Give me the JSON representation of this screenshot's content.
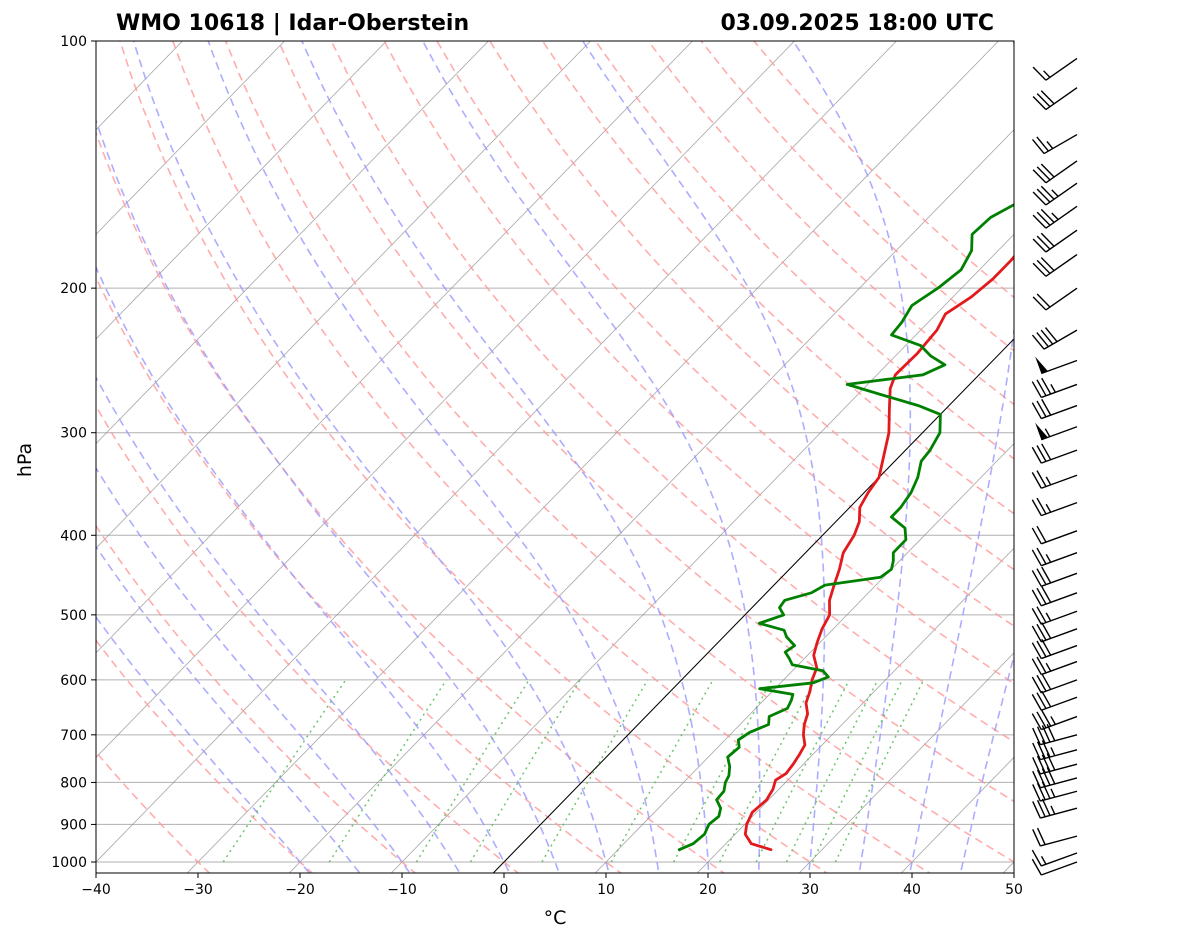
{
  "chart_data": {
    "type": "line",
    "title_left": "WMO 10618 | Idar-Oberstein",
    "title_right": "03.09.2025 18:00 UTC",
    "xlabel": "°C",
    "ylabel": "hPa",
    "xlim": [
      -40,
      50
    ],
    "ylim": [
      1050,
      100
    ],
    "y_scale": "log",
    "x_ticks": [
      -40,
      -30,
      -20,
      -10,
      0,
      10,
      20,
      30,
      40,
      50
    ],
    "x_tick_labels": [
      "−40",
      "−30",
      "−20",
      "−10",
      "0",
      "10",
      "20",
      "30",
      "40",
      "50"
    ],
    "y_ticks": [
      100,
      200,
      300,
      400,
      500,
      600,
      700,
      800,
      900,
      1000
    ],
    "y_tick_labels": [
      "100",
      "200",
      "300",
      "400",
      "500",
      "600",
      "700",
      "800",
      "900",
      "1000"
    ],
    "grid": true,
    "series": [
      {
        "key": "temperature",
        "color": "#e31a1c",
        "points": [
          [
            966,
            25.0
          ],
          [
            950,
            22.5
          ],
          [
            925,
            21.0
          ],
          [
            900,
            20.2
          ],
          [
            870,
            19.6
          ],
          [
            840,
            19.8
          ],
          [
            815,
            19.4
          ],
          [
            795,
            18.8
          ],
          [
            780,
            19.2
          ],
          [
            760,
            19.0
          ],
          [
            740,
            18.7
          ],
          [
            720,
            18.3
          ],
          [
            700,
            17.2
          ],
          [
            680,
            16.3
          ],
          [
            660,
            15.6
          ],
          [
            640,
            14.4
          ],
          [
            620,
            13.7
          ],
          [
            600,
            12.8
          ],
          [
            580,
            12.1
          ],
          [
            560,
            10.6
          ],
          [
            540,
            9.7
          ],
          [
            520,
            8.9
          ],
          [
            500,
            8.3
          ],
          [
            480,
            6.9
          ],
          [
            460,
            5.9
          ],
          [
            440,
            4.9
          ],
          [
            420,
            3.7
          ],
          [
            400,
            3.1
          ],
          [
            385,
            2.3
          ],
          [
            370,
            1.0
          ],
          [
            355,
            0.4
          ],
          [
            340,
            0.0
          ],
          [
            320,
            -1.6
          ],
          [
            300,
            -3.3
          ],
          [
            280,
            -5.6
          ],
          [
            265,
            -7.4
          ],
          [
            255,
            -8.2
          ],
          [
            240,
            -8.1
          ],
          [
            225,
            -8.4
          ],
          [
            215,
            -9.1
          ],
          [
            205,
            -8.2
          ],
          [
            195,
            -7.8
          ],
          [
            185,
            -7.8
          ],
          [
            178,
            -8.0
          ],
          [
            170,
            -6.9
          ],
          [
            160,
            -6.5
          ],
          [
            152,
            -5.6
          ],
          [
            148,
            -5.8
          ],
          [
            142,
            -3.7
          ],
          [
            137,
            -1.5
          ],
          [
            132,
            0.5
          ],
          [
            126,
            2.4
          ],
          [
            120,
            3.3
          ],
          [
            115,
            3.6
          ],
          [
            110,
            3.9
          ],
          [
            105,
            6.1
          ],
          [
            101,
            6.6
          ],
          [
            100,
            6.8
          ]
        ]
      },
      {
        "key": "dewpoint",
        "color": "#008000",
        "points": [
          [
            966,
            16.0
          ],
          [
            950,
            16.8
          ],
          [
            925,
            17.0
          ],
          [
            900,
            16.5
          ],
          [
            880,
            16.7
          ],
          [
            860,
            16.1
          ],
          [
            840,
            14.9
          ],
          [
            820,
            14.8
          ],
          [
            800,
            14.1
          ],
          [
            785,
            13.8
          ],
          [
            765,
            13.0
          ],
          [
            745,
            11.9
          ],
          [
            725,
            12.1
          ],
          [
            710,
            11.3
          ],
          [
            695,
            11.7
          ],
          [
            680,
            12.8
          ],
          [
            665,
            12.1
          ],
          [
            650,
            13.1
          ],
          [
            635,
            12.7
          ],
          [
            625,
            12.3
          ],
          [
            615,
            8.5
          ],
          [
            605,
            13.2
          ],
          [
            595,
            14.1
          ],
          [
            585,
            13.0
          ],
          [
            575,
            9.4
          ],
          [
            565,
            8.5
          ],
          [
            555,
            7.5
          ],
          [
            545,
            7.8
          ],
          [
            532,
            6.2
          ],
          [
            522,
            5.3
          ],
          [
            512,
            2.2
          ],
          [
            500,
            3.8
          ],
          [
            490,
            2.7
          ],
          [
            480,
            2.5
          ],
          [
            470,
            4.4
          ],
          [
            460,
            5.0
          ],
          [
            450,
            9.7
          ],
          [
            440,
            10.0
          ],
          [
            430,
            9.4
          ],
          [
            420,
            8.6
          ],
          [
            405,
            8.6
          ],
          [
            392,
            7.4
          ],
          [
            380,
            5.0
          ],
          [
            370,
            5.0
          ],
          [
            355,
            4.6
          ],
          [
            340,
            3.8
          ],
          [
            325,
            2.6
          ],
          [
            315,
            2.4
          ],
          [
            300,
            1.7
          ],
          [
            285,
            0.0
          ],
          [
            278,
            -3.0
          ],
          [
            270,
            -7.5
          ],
          [
            262,
            -12.0
          ],
          [
            255,
            -5.5
          ],
          [
            248,
            -4.3
          ],
          [
            242,
            -6.5
          ],
          [
            235,
            -8.5
          ],
          [
            228,
            -12.4
          ],
          [
            220,
            -12.6
          ],
          [
            210,
            -13.2
          ],
          [
            200,
            -12.3
          ],
          [
            190,
            -11.8
          ],
          [
            180,
            -12.6
          ],
          [
            172,
            -14.1
          ],
          [
            164,
            -13.9
          ],
          [
            156,
            -12.4
          ],
          [
            150,
            -13.4
          ],
          [
            146,
            -11.4
          ],
          [
            140,
            -10.5
          ],
          [
            134,
            -11.5
          ],
          [
            130,
            -12.9
          ],
          [
            125,
            -12.3
          ],
          [
            120,
            -11.3
          ],
          [
            115,
            -10.0
          ],
          [
            110,
            -8.4
          ],
          [
            105,
            -6.4
          ],
          [
            100,
            -4.8
          ]
        ]
      }
    ],
    "wind_barbs": [
      {
        "p": 1000,
        "dir": 250,
        "speed": 10
      },
      {
        "p": 975,
        "dir": 250,
        "speed": 15
      },
      {
        "p": 930,
        "dir": 255,
        "speed": 20
      },
      {
        "p": 860,
        "dir": 255,
        "speed": 35
      },
      {
        "p": 820,
        "dir": 255,
        "speed": 35
      },
      {
        "p": 790,
        "dir": 255,
        "speed": 40
      },
      {
        "p": 760,
        "dir": 255,
        "speed": 40
      },
      {
        "p": 730,
        "dir": 255,
        "speed": 35
      },
      {
        "p": 700,
        "dir": 255,
        "speed": 40
      },
      {
        "p": 665,
        "dir": 250,
        "speed": 35
      },
      {
        "p": 630,
        "dir": 250,
        "speed": 30
      },
      {
        "p": 600,
        "dir": 250,
        "speed": 30
      },
      {
        "p": 570,
        "dir": 250,
        "speed": 25
      },
      {
        "p": 545,
        "dir": 250,
        "speed": 30
      },
      {
        "p": 520,
        "dir": 250,
        "speed": 30
      },
      {
        "p": 495,
        "dir": 250,
        "speed": 25
      },
      {
        "p": 470,
        "dir": 250,
        "speed": 30
      },
      {
        "p": 445,
        "dir": 250,
        "speed": 30
      },
      {
        "p": 420,
        "dir": 250,
        "speed": 25
      },
      {
        "p": 395,
        "dir": 250,
        "speed": 20
      },
      {
        "p": 365,
        "dir": 250,
        "speed": 25
      },
      {
        "p": 338,
        "dir": 250,
        "speed": 25
      },
      {
        "p": 315,
        "dir": 250,
        "speed": 30
      },
      {
        "p": 295,
        "dir": 250,
        "speed": 55
      },
      {
        "p": 278,
        "dir": 250,
        "speed": 30
      },
      {
        "p": 262,
        "dir": 250,
        "speed": 35
      },
      {
        "p": 245,
        "dir": 250,
        "speed": 50
      },
      {
        "p": 225,
        "dir": 240,
        "speed": 40
      },
      {
        "p": 200,
        "dir": 235,
        "speed": 20
      },
      {
        "p": 182,
        "dir": 235,
        "speed": 30
      },
      {
        "p": 170,
        "dir": 235,
        "speed": 30
      },
      {
        "p": 159,
        "dir": 235,
        "speed": 35
      },
      {
        "p": 149,
        "dir": 235,
        "speed": 35
      },
      {
        "p": 140,
        "dir": 235,
        "speed": 30
      },
      {
        "p": 130,
        "dir": 240,
        "speed": 25
      },
      {
        "p": 114,
        "dir": 235,
        "speed": 30
      },
      {
        "p": 105,
        "dir": 235,
        "speed": 15
      }
    ],
    "background_lines": {
      "isotherm_color": "#808080",
      "dry_adiabat_color": "#ff9999",
      "moist_adiabat_color": "#9999ff",
      "mixing_ratio_color": "#55bb55",
      "dry_adiabats_theta_c": [
        -30,
        -20,
        -10,
        0,
        10,
        20,
        30,
        40,
        50,
        60,
        70,
        80,
        90,
        100,
        110,
        120,
        130,
        140,
        150
      ],
      "moist_adiabats_start_c": [
        -20,
        -15,
        -10,
        -5,
        0,
        5,
        10,
        15,
        20,
        25,
        30,
        35,
        40,
        45
      ],
      "mixing_ratios_gkg": [
        0.4,
        1,
        2,
        3,
        5,
        8,
        12,
        16,
        20,
        24,
        28,
        32
      ],
      "reference_isotherm_c": 0
    }
  }
}
